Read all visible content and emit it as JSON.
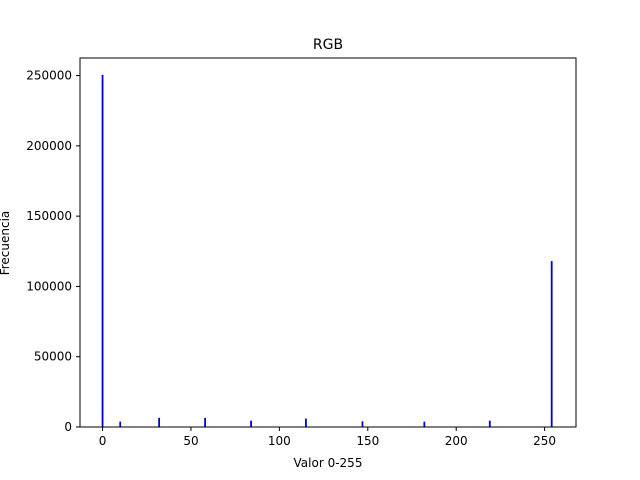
{
  "chart_data": {
    "type": "bar",
    "title": "RGB",
    "xlabel": "Valor 0-255",
    "ylabel": "Frecuencia",
    "xlim": [
      -12.75,
      267.75
    ],
    "ylim": [
      0,
      262500
    ],
    "xticks": [
      0,
      50,
      100,
      150,
      200,
      250
    ],
    "xtick_labels": [
      "0",
      "50",
      "100",
      "150",
      "200",
      "250"
    ],
    "yticks": [
      0,
      50000,
      100000,
      150000,
      200000,
      250000
    ],
    "ytick_labels": [
      "0",
      "50000",
      "100000",
      "150000",
      "200000",
      "250000"
    ],
    "grid": false,
    "series": [
      {
        "name": "RGB",
        "color": "#0000cc",
        "bins": [
          0,
          10,
          32,
          58,
          84,
          115,
          147,
          182,
          219,
          254
        ],
        "values": [
          250500,
          3800,
          6500,
          6500,
          4500,
          6000,
          4000,
          3800,
          4500,
          118000
        ]
      }
    ]
  }
}
